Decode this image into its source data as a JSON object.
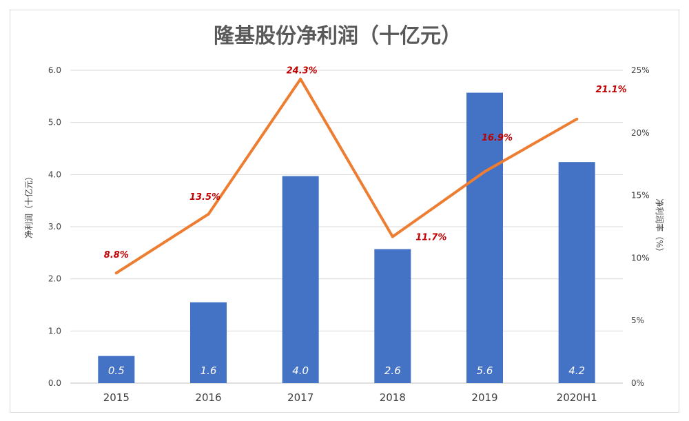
{
  "chart_data": {
    "type": "bar",
    "title": "隆基股份净利润（十亿元）",
    "categories": [
      "2015",
      "2016",
      "2017",
      "2018",
      "2019",
      "2020H1"
    ],
    "series": [
      {
        "name": "净利润（十亿元）",
        "type": "bar",
        "axis": "left",
        "values": [
          0.52,
          1.55,
          3.97,
          2.57,
          5.57,
          4.24
        ],
        "labels": [
          "0.5",
          "1.6",
          "4.0",
          "2.6",
          "5.6",
          "4.2"
        ],
        "color": "#4472c4"
      },
      {
        "name": "净利润率（%）",
        "type": "line",
        "axis": "right",
        "values": [
          8.8,
          13.5,
          24.3,
          11.7,
          16.9,
          21.1
        ],
        "labels": [
          "8.8%",
          "13.5%",
          "24.3%",
          "11.7%",
          "16.9%",
          "21.1%"
        ],
        "color": "#ed7d31"
      }
    ],
    "ylabel": "净利润（十亿元）",
    "ylim": [
      0,
      6
    ],
    "yticks": [
      "0.0",
      "1.0",
      "2.0",
      "3.0",
      "4.0",
      "5.0",
      "6.0"
    ],
    "y2label": "净利润率（%）",
    "y2lim": [
      0,
      25
    ],
    "y2ticks": [
      "0%",
      "5%",
      "10%",
      "15%",
      "20%",
      "25%"
    ],
    "grid": true,
    "label_color": "#c00000"
  }
}
